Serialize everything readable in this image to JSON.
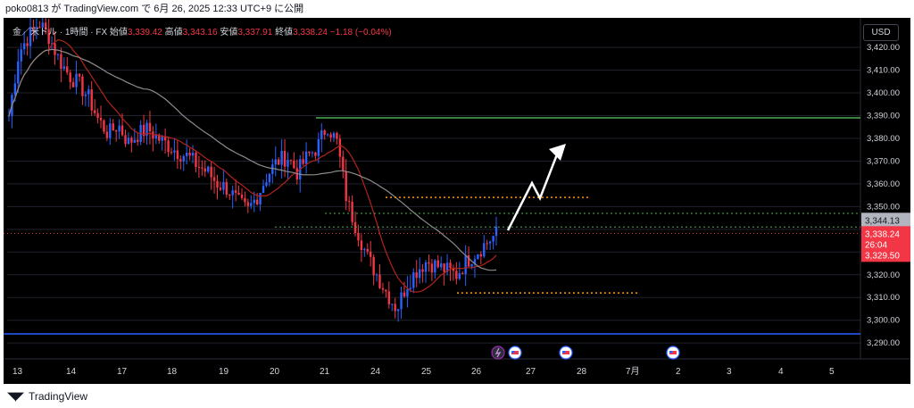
{
  "header": {
    "publish_line": "poko0813 が TradingView.com で 6月 26, 2025 12:33 UTC+9 に公開"
  },
  "ohlc": {
    "symbol": "金／米ドル · 1時間 · FX",
    "open_label": "始値",
    "open": "3,339.42",
    "high_label": "高値",
    "high": "3,343.16",
    "low_label": "安値",
    "low": "3,337.91",
    "close_label": "終値",
    "close": "3,338.24",
    "change": "−1.18 (−0.04%)"
  },
  "currency_button": "USD",
  "footer": {
    "logo_text": "TradingView"
  },
  "price_labels": {
    "ma_value": "3,344.13",
    "last_price": "3,338.24",
    "countdown": "26:04",
    "line_price": "3,329.50"
  },
  "colors": {
    "background": "#000000",
    "up_candle": "#2962ff",
    "down_candle": "#f23645",
    "ma_fast": "#b2231c",
    "ma_slow": "#8c8c8c",
    "green_level": "#4caf50",
    "blue_level": "#2962ff",
    "orange_level": "#ff9800",
    "arrow": "#ffffff"
  },
  "chart_data": {
    "type": "candlestick",
    "y_axis": {
      "ticks": [
        3290,
        3300,
        3310,
        3320,
        3330,
        3340,
        3350,
        3360,
        3370,
        3380,
        3390,
        3400,
        3410,
        3420
      ],
      "tick_labels": [
        "3,290.00",
        "3,300.00",
        "3,310.00",
        "3,320.00",
        "3,330.00",
        "3,340.00",
        "3,350.00",
        "3,360.00",
        "3,370.00",
        "3,380.00",
        "3,390.00",
        "3,400.00",
        "3,410.00",
        "3,420.00"
      ],
      "ylim": [
        3283,
        3433
      ]
    },
    "x_axis": {
      "labels": [
        "13",
        "14",
        "17",
        "18",
        "19",
        "20",
        "21",
        "24",
        "25",
        "26",
        "27",
        "28",
        "7月",
        "2",
        "3",
        "4",
        "5"
      ]
    },
    "ohlc_path": [
      3390,
      3418,
      3425,
      3431,
      3425,
      3415,
      3408,
      3404,
      3398,
      3388,
      3382,
      3386,
      3378,
      3382,
      3384,
      3380,
      3377,
      3374,
      3372,
      3368,
      3365,
      3360,
      3358,
      3352,
      3348,
      3355,
      3364,
      3370,
      3372,
      3365,
      3372,
      3376,
      3386,
      3378,
      3352,
      3340,
      3328,
      3320,
      3312,
      3305,
      3316,
      3322,
      3326,
      3324,
      3322,
      3320,
      3326,
      3330,
      3334,
      3338
    ],
    "levels": [
      {
        "name": "resistance",
        "value": 3389,
        "color": "#4caf50"
      },
      {
        "name": "upper-dotted",
        "value": 3354,
        "color": "#ff9800"
      },
      {
        "name": "green-dotted-1",
        "value": 3347,
        "color": "#4caf50"
      },
      {
        "name": "green-dotted-2",
        "value": 3341,
        "color": "#4caf50"
      },
      {
        "name": "last-price-dotted",
        "value": 3338.24,
        "color": "#f23645"
      },
      {
        "name": "lower-dotted",
        "value": 3312,
        "color": "#ff9800"
      },
      {
        "name": "support",
        "value": 3294,
        "color": "#2962ff"
      }
    ]
  },
  "event_icons": [
    {
      "name": "flash-event-icon",
      "x_index": 0
    },
    {
      "name": "us-flag-event-icon",
      "x_index": 1
    },
    {
      "name": "us-flag-event-icon",
      "x_index": 2
    },
    {
      "name": "us-flag-event-icon",
      "x_index": 3
    }
  ]
}
